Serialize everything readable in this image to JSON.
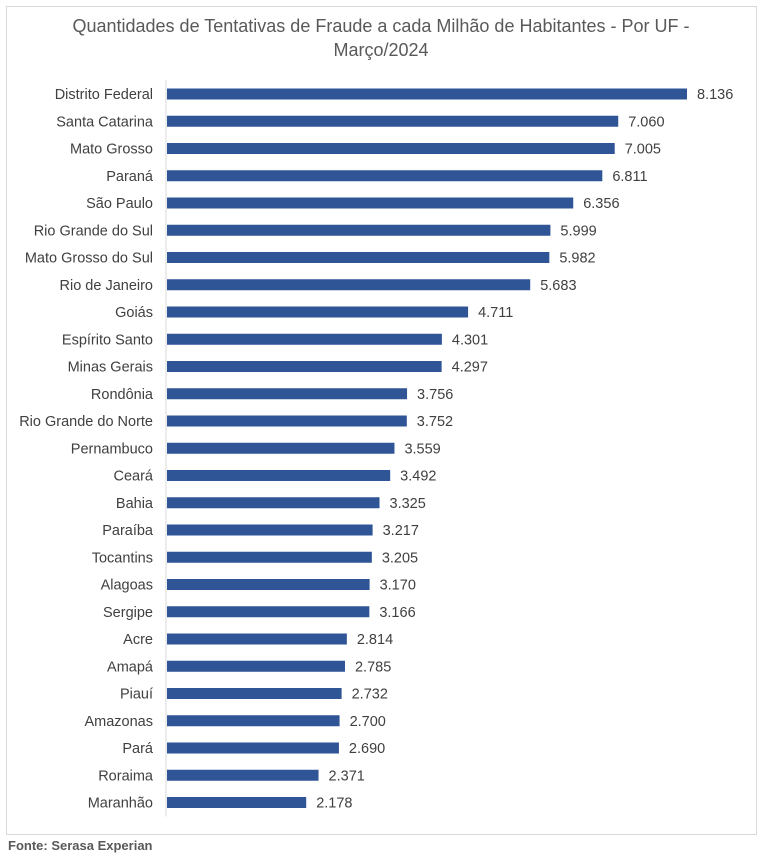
{
  "chart_data": {
    "type": "bar",
    "orientation": "horizontal",
    "title": "Quantidades de Tentativas de Fraude a cada Milhão de Habitantes - Por UF - Março/2024",
    "xlabel": "",
    "ylabel": "",
    "xlim": [
      0,
      8136
    ],
    "bar_color": "#2f5597",
    "categories": [
      "Distrito Federal",
      "Santa Catarina",
      "Mato Grosso",
      "Paraná",
      "São Paulo",
      "Rio Grande do Sul",
      "Mato Grosso do Sul",
      "Rio de Janeiro",
      "Goiás",
      "Espírito Santo",
      "Minas Gerais",
      "Rondônia",
      "Rio Grande do Norte",
      "Pernambuco",
      "Ceará",
      "Bahia",
      "Paraíba",
      "Tocantins",
      "Alagoas",
      "Sergipe",
      "Acre",
      "Amapá",
      "Piauí",
      "Amazonas",
      "Pará",
      "Roraima",
      "Maranhão"
    ],
    "values": [
      8136,
      7060,
      7005,
      6811,
      6356,
      5999,
      5982,
      5683,
      4711,
      4301,
      4297,
      3756,
      3752,
      3559,
      3492,
      3325,
      3217,
      3205,
      3170,
      3166,
      2814,
      2785,
      2732,
      2700,
      2690,
      2371,
      2178
    ],
    "value_labels": [
      "8.136",
      "7.060",
      "7.005",
      "6.811",
      "6.356",
      "5.999",
      "5.982",
      "5.683",
      "4.711",
      "4.301",
      "4.297",
      "3.756",
      "3.752",
      "3.559",
      "3.492",
      "3.325",
      "3.217",
      "3.205",
      "3.170",
      "3.166",
      "2.814",
      "2.785",
      "2.732",
      "2.700",
      "2.690",
      "2.371",
      "2.178"
    ],
    "grid": false,
    "legend": "none"
  },
  "source": "Fonte: Serasa Experian"
}
